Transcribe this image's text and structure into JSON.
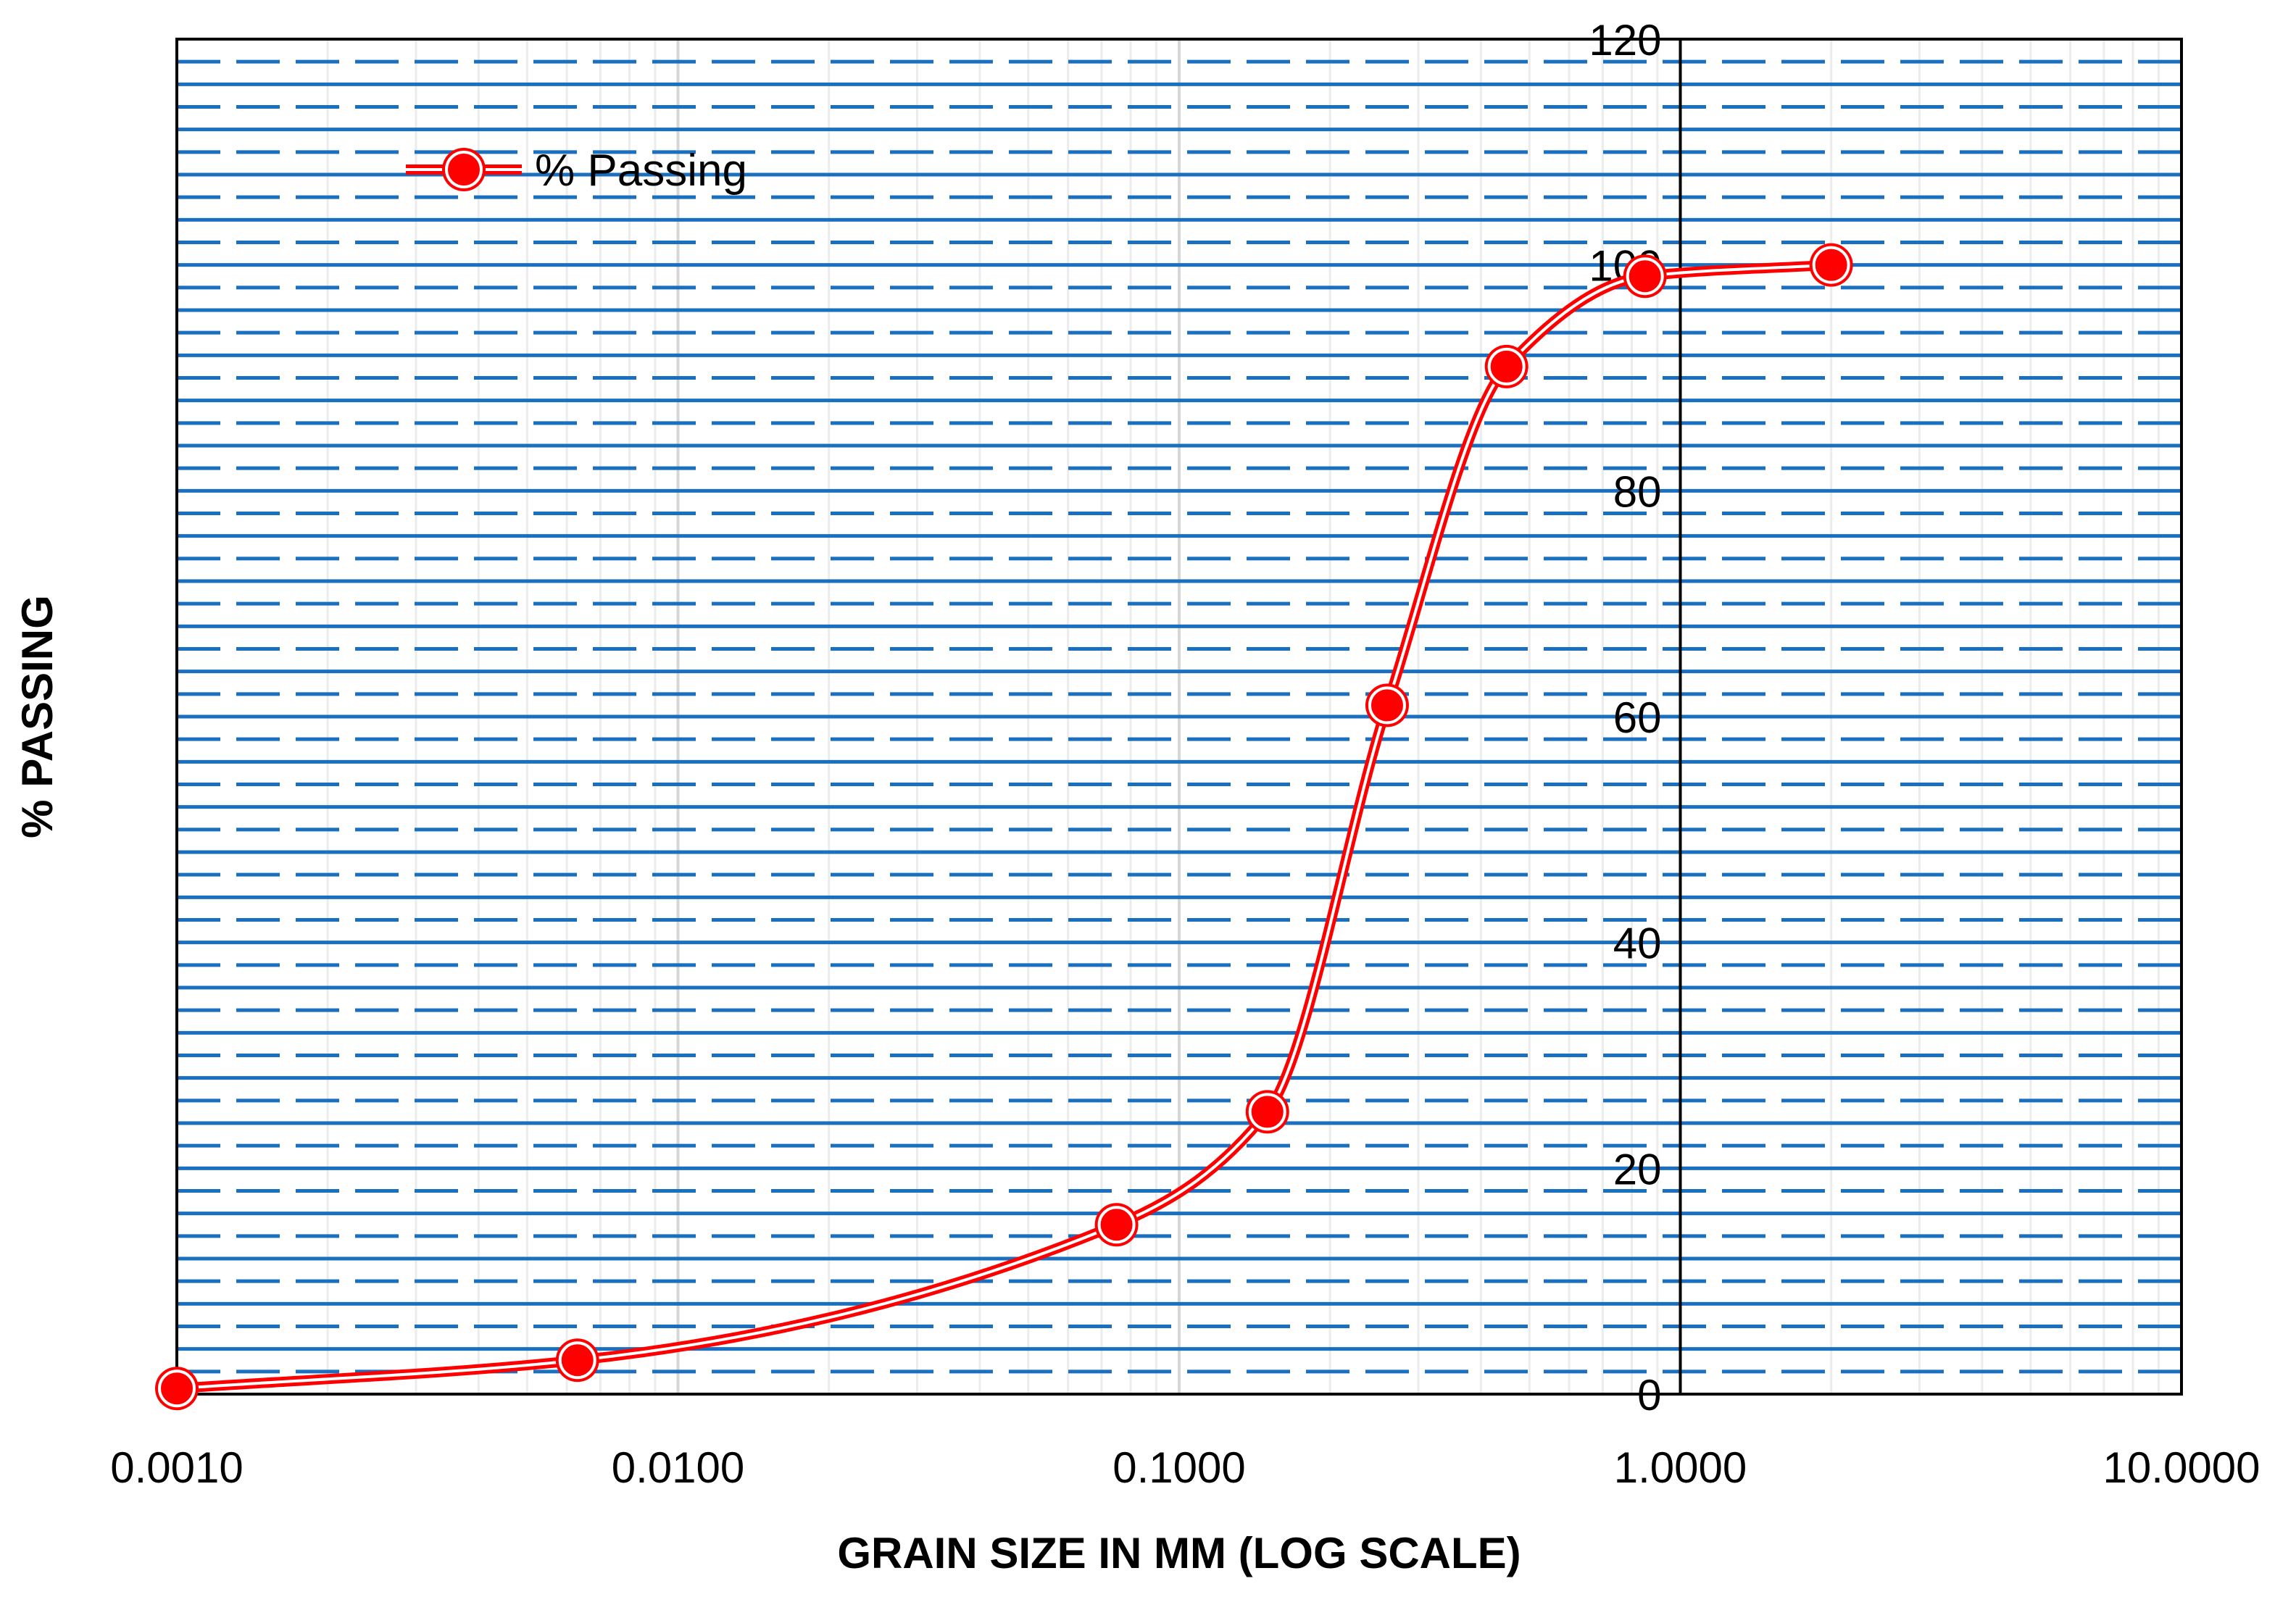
{
  "chart_data": {
    "type": "line",
    "x_scale": "log",
    "xlabel": "GRAIN SIZE IN MM (LOG SCALE)",
    "ylabel": "% PASSING",
    "xlim": [
      0.001,
      10
    ],
    "ylim": [
      0,
      120
    ],
    "x_ticks": [
      0.001,
      0.01,
      0.1,
      1,
      10
    ],
    "x_tick_labels": [
      "0.0010",
      "0.0100",
      "0.1000",
      "1.0000",
      "10.0000"
    ],
    "y_ticks": [
      0,
      20,
      40,
      60,
      80,
      100,
      120
    ],
    "y_tick_labels": [
      "0",
      "20",
      "40",
      "60",
      "80",
      "100",
      "120"
    ],
    "y_axis_crosses_x": 1,
    "grid": true,
    "legend_position": "top-left",
    "series": [
      {
        "name": "% Passing",
        "color": "#ff0000",
        "smooth": true,
        "points": [
          {
            "x": 0.001,
            "y": 0.5
          },
          {
            "x": 0.0063,
            "y": 3
          },
          {
            "x": 0.075,
            "y": 15
          },
          {
            "x": 0.15,
            "y": 25
          },
          {
            "x": 0.26,
            "y": 61
          },
          {
            "x": 0.45,
            "y": 91
          },
          {
            "x": 0.85,
            "y": 99
          },
          {
            "x": 2.0,
            "y": 100
          }
        ]
      }
    ]
  }
}
